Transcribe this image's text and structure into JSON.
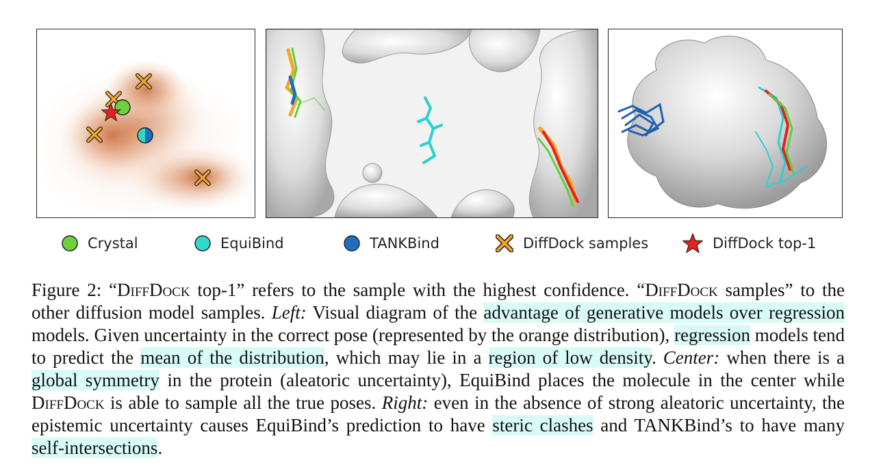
{
  "figure": {
    "panels": {
      "left": {
        "description_markers": [
          "crystal",
          "equibind",
          "tankbind",
          "diffdock-samples",
          "diffdock-top1"
        ]
      }
    },
    "legend": [
      {
        "label": "Crystal",
        "color": "#6fd23a",
        "icon": "circle-icon"
      },
      {
        "label": "EquiBind",
        "color": "#33d9c8",
        "icon": "circle-icon"
      },
      {
        "label": "TANKBind",
        "color": "#1f6fc0",
        "icon": "circle-icon"
      },
      {
        "label": "DiffDock samples",
        "color": "#f4a52a",
        "icon": "cross-icon"
      },
      {
        "label": "DiffDock top-1",
        "color": "#e8201c",
        "icon": "star-icon"
      }
    ],
    "caption": {
      "p1": "Figure 2: “",
      "sc1": "DiffDock",
      "p2": " top-1” refers to the sample with the highest confidence. “",
      "sc2": "DiffDock",
      "p3": " samples” to the other diffusion model samples. ",
      "left_label": "Left:",
      "p4": " Visual diagram of the ",
      "hl1": "advantage of generative models over regression",
      "p5": " models. Given uncertainty in the correct pose (represented by the orange distribution), ",
      "hl2": "regression",
      "p6": " models tend to predict the ",
      "hl3": "mean of the distribution",
      "p7": ", which may lie in a ",
      "hl4": "region of low density",
      "p8": ". ",
      "center_label": "Center:",
      "p9": " when there is a ",
      "hl5": "global symmetry",
      "p10": " in the protein (aleatoric uncertainty), EquiBind places the molecule in the center while ",
      "sc3": "DiffDock",
      "p11": " is able to sample all the true poses. ",
      "right_label": "Right:",
      "p12": " even in the absence of strong aleatoric uncertainty, the epistemic uncertainty causes EquiBind’s prediction to have ",
      "hl6": "steric clashes",
      "p13": " and TANKBind’s to have many ",
      "hl7": "self-intersections",
      "p14": "."
    }
  }
}
